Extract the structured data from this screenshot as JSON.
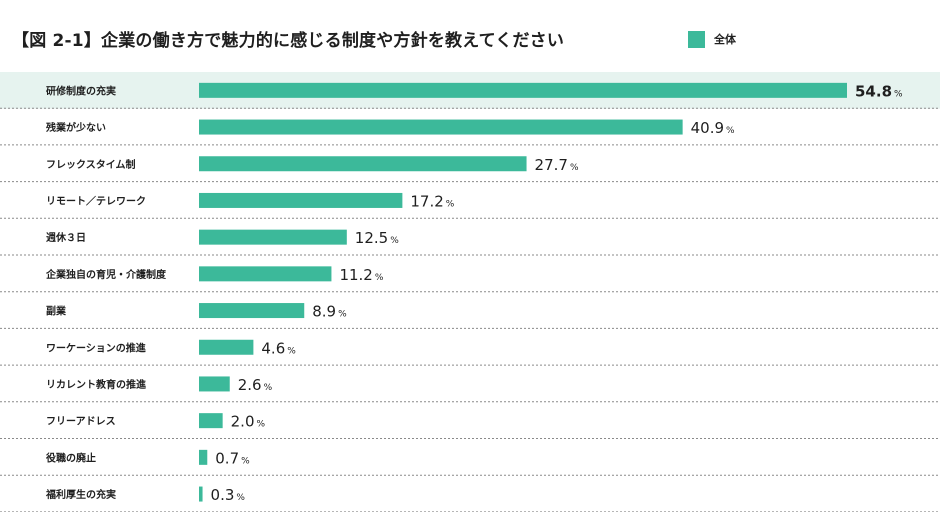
{
  "chart_data": {
    "type": "bar",
    "orientation": "horizontal",
    "title": "【図 2-1】企業の働き方で魅力的に感じる制度や方針を教えてください",
    "legend": {
      "position": "top-right",
      "entries": [
        "全体"
      ]
    },
    "bar_color": "#3cb99a",
    "highlight_color": "#e6f3ef",
    "categories": [
      "研修制度の充実",
      "残業が少ない",
      "フレックスタイム制",
      "リモート／テレワーク",
      "週休３日",
      "企業独自の育児・介護制度",
      "副業",
      "ワーケーションの推進",
      "リカレント教育の推進",
      "フリーアドレス",
      "役職の廃止",
      "福利厚生の充実"
    ],
    "series": [
      {
        "name": "全体",
        "values": [
          54.8,
          40.9,
          27.7,
          17.2,
          12.5,
          11.2,
          8.9,
          4.6,
          2.6,
          2.0,
          0.7,
          0.3
        ]
      }
    ],
    "value_labels": [
      "54.8",
      "40.9",
      "27.7",
      "17.2",
      "12.5",
      "11.2",
      "8.9",
      "4.6",
      "2.6",
      "2.0",
      "0.7",
      "0.3"
    ],
    "unit": "%",
    "highlighted_category": "研修制度の充実",
    "xlim": [
      0,
      54.8
    ],
    "grid": false
  }
}
